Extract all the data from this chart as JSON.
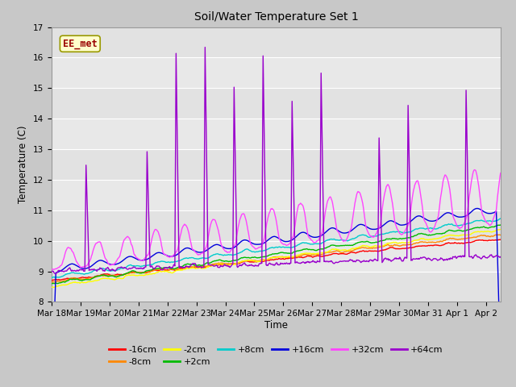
{
  "title": "Soil/Water Temperature Set 1",
  "xlabel": "Time",
  "ylabel": "Temperature (C)",
  "ylim": [
    8.0,
    17.0
  ],
  "yticks": [
    8.0,
    9.0,
    10.0,
    11.0,
    12.0,
    13.0,
    14.0,
    15.0,
    16.0,
    17.0
  ],
  "fig_bg": "#c8c8c8",
  "plot_bg": "#e8e8e8",
  "grid_color": "#ffffff",
  "annotation_text": "EE_met",
  "annotation_bg": "#ffffcc",
  "annotation_border": "#999900",
  "annotation_text_color": "#990000",
  "series_order": [
    "-16cm",
    "-8cm",
    "-2cm",
    "+2cm",
    "+8cm",
    "+16cm",
    "+32cm",
    "+64cm"
  ],
  "series": {
    "-16cm": {
      "color": "#ff0000",
      "lw": 1.0
    },
    "-8cm": {
      "color": "#ff8800",
      "lw": 1.0
    },
    "-2cm": {
      "color": "#ffff00",
      "lw": 1.0
    },
    "+2cm": {
      "color": "#00bb00",
      "lw": 1.0
    },
    "+8cm": {
      "color": "#00cccc",
      "lw": 1.0
    },
    "+16cm": {
      "color": "#0000dd",
      "lw": 1.0
    },
    "+32cm": {
      "color": "#ff44ff",
      "lw": 1.0
    },
    "+64cm": {
      "color": "#9900cc",
      "lw": 1.0
    }
  },
  "tick_labels": [
    "Mar 18",
    "Mar 19",
    "Mar 20",
    "Mar 21",
    "Mar 22",
    "Mar 23",
    "Mar 24",
    "Mar 25",
    "Mar 26",
    "Mar 27",
    "Mar 28",
    "Mar 29",
    "Mar 30",
    "Mar 31",
    "Apr 1",
    "Apr 2"
  ],
  "legend_ncol_row1": 6,
  "legend_ncol_row2": 2
}
